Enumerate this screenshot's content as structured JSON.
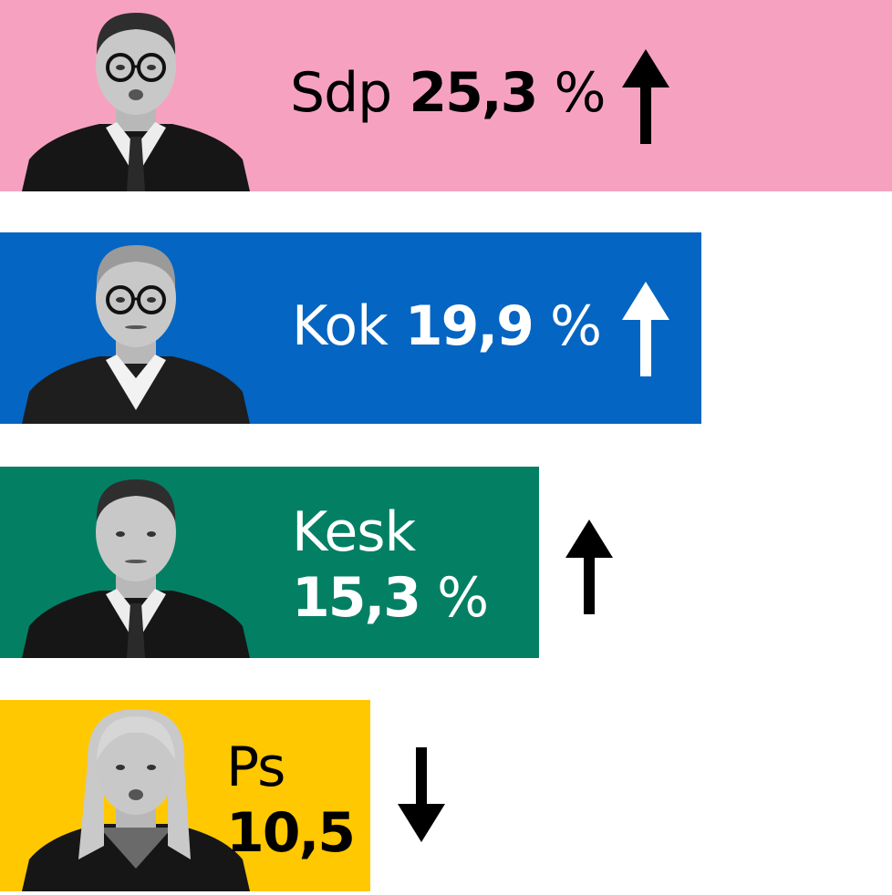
{
  "chart_data": {
    "type": "bar",
    "orientation": "horizontal",
    "categories": [
      "Sdp",
      "Kok",
      "Kesk",
      "Ps"
    ],
    "values": [
      25.3,
      19.9,
      15.3,
      10.5
    ],
    "value_labels": [
      "25,3",
      "19,9",
      "15,3",
      "10,5"
    ],
    "unit_labels": [
      "%",
      "%",
      "%",
      ""
    ],
    "trends": [
      "up",
      "up",
      "up",
      "down"
    ],
    "colors": [
      "#f7a1c0",
      "#0465c2",
      "#038064",
      "#ffc800"
    ],
    "text_colors": [
      "#000000",
      "#ffffff",
      "#ffffff",
      "#000000"
    ],
    "arrow_colors": [
      "#000000",
      "#ffffff",
      "#000000",
      "#000000"
    ],
    "portrait_icons": [
      "man-glasses-portrait-icon",
      "man-glasses-sweater-portrait-icon",
      "man-suit-portrait-icon",
      "woman-portrait-icon"
    ],
    "xlim": [
      0,
      25.3
    ],
    "title": "",
    "xlabel": "",
    "ylabel": ""
  }
}
